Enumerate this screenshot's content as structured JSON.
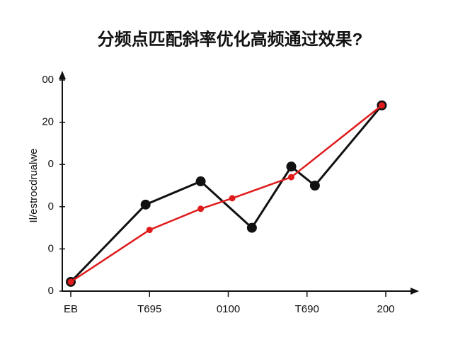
{
  "chart_data": {
    "type": "line",
    "title": "分频点匹配斜率优化高频通过效果?",
    "y_label": "Il/estrocdrualwe",
    "xlim": [
      0,
      4
    ],
    "xticks": [
      {
        "value": 0,
        "label": "EB"
      },
      {
        "value": 1,
        "label": "T695"
      },
      {
        "value": 2,
        "label": "0100"
      },
      {
        "value": 3,
        "label": "T690"
      },
      {
        "value": 4,
        "label": "200"
      }
    ],
    "ylim": [
      0,
      100
    ],
    "yticks": [
      0,
      {
        "value": 20,
        "label": "0"
      },
      {
        "value": 40,
        "label": "0"
      },
      {
        "value": 60,
        "label": "0"
      },
      {
        "value": 80,
        "label": "20"
      },
      {
        "value": 100,
        "label": "00"
      }
    ],
    "series": [
      {
        "color": "#111111",
        "x": [
          0,
          0.95,
          1.65,
          2.3,
          2.8,
          3.1,
          3.95
        ],
        "values": [
          4.4,
          41,
          52,
          30,
          59,
          50,
          88
        ]
      },
      {
        "color": "#e01b1b",
        "x": [
          0,
          1,
          1.65,
          2.05,
          2.8,
          3.95
        ],
        "values": [
          4.4,
          29,
          39,
          44,
          54,
          88
        ]
      }
    ]
  }
}
